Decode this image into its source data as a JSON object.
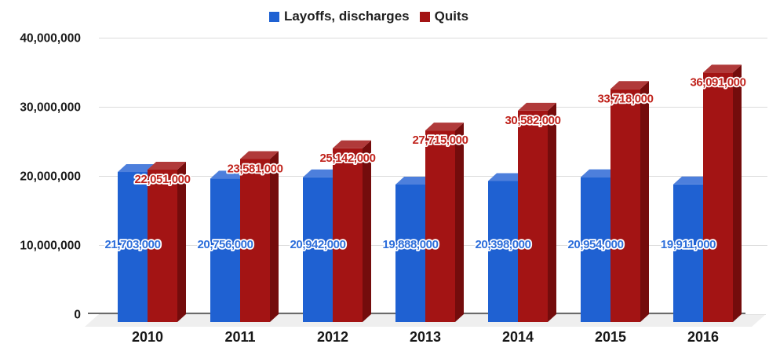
{
  "chart_data": {
    "type": "bar",
    "style": "3d-column",
    "title": "",
    "categories": [
      "2010",
      "2011",
      "2012",
      "2013",
      "2014",
      "2015",
      "2016"
    ],
    "series": [
      {
        "name": "Layoffs, discharges",
        "values": [
          21703000,
          20756000,
          20942000,
          19888000,
          20398000,
          20954000,
          19911000
        ],
        "value_labels": [
          "21,703,000",
          "20,756,000",
          "20,942,000",
          "19,888,000",
          "20,398,000",
          "20,954,000",
          "19,911,000"
        ],
        "color_front": "#1f61d2",
        "color_top": "#4d7fdc",
        "color_side": "#16459a",
        "label_color": "#2e6fdb"
      },
      {
        "name": "Quits",
        "values": [
          22051000,
          23581000,
          25142000,
          27715000,
          30582000,
          33718000,
          36091000
        ],
        "value_labels": [
          "22,051,000",
          "23,581,000",
          "25,142,000",
          "27,715,000",
          "30,582,000",
          "33,718,000",
          "36,091,000"
        ],
        "color_front": "#a31414",
        "color_top": "#b03a3a",
        "color_side": "#740c0c",
        "label_color": "#c0231c"
      }
    ],
    "y_axis": {
      "min": 0,
      "max": 40000000,
      "tick_interval": 10000000,
      "tick_values": [
        0,
        10000000,
        20000000,
        30000000,
        40000000
      ],
      "tick_labels": [
        "0",
        "10,000,000",
        "20,000,000",
        "30,000,000",
        "40,000,000"
      ]
    },
    "legend_position": "top",
    "grid": true,
    "colors": {
      "gridline": "#dcdcdc",
      "zero_line": "#e2e2e2",
      "axis_baseline": "#6a6a6a",
      "floor": "#efefef",
      "background": "#ffffff"
    }
  }
}
